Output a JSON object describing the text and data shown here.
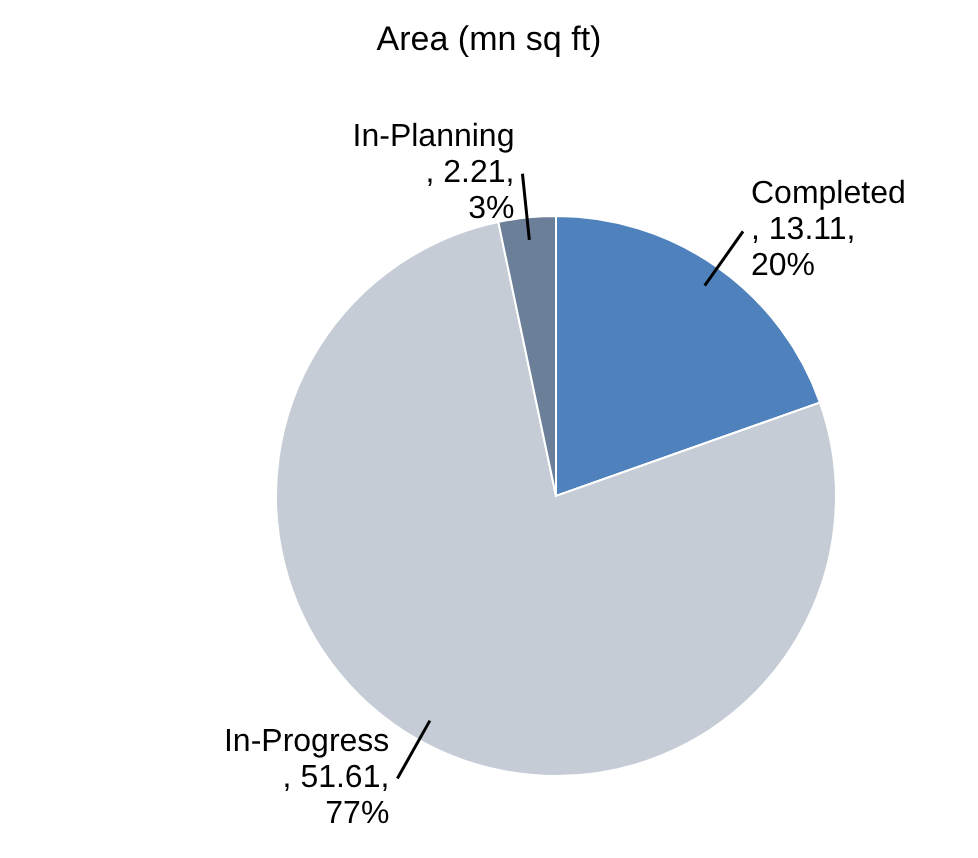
{
  "chart_data": {
    "type": "pie",
    "title": "Area (mn sq ft)",
    "categories": [
      "Completed",
      "In-Progress",
      "In-Planning"
    ],
    "values": [
      13.11,
      51.61,
      2.21
    ],
    "value_labels": [
      ", 13.11, 20%",
      ", 51.61, 77%",
      ", 2.21, 3%"
    ],
    "colors": [
      "#4f81bd",
      "#c5ccd6",
      "#6b7f99"
    ]
  }
}
